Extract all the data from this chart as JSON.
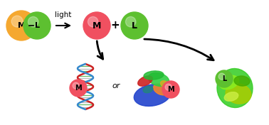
{
  "bg_color": "#ffffff",
  "light_text": "light",
  "or_text": "or",
  "plus_text": "+",
  "m_label": "M",
  "l_label": "L",
  "orange_color": "#F5A830",
  "red_color": "#F05060",
  "green_color": "#5DC030",
  "fig_width": 3.78,
  "fig_height": 1.76,
  "dpi": 100,
  "xlim": [
    0,
    378
  ],
  "ylim": [
    0,
    176
  ],
  "dna_strand1_color": "#cc2222",
  "dna_strand2_color": "#3388cc",
  "dna_bp_color": "#44aa44",
  "protein1_colors": [
    "#2244cc",
    "#33bb33",
    "#cc2222",
    "#ff7722",
    "#33aa88"
  ],
  "protein2_colors": [
    "#33cc22",
    "#aacc00",
    "#ccee33",
    "#88ee22",
    "#44aa00"
  ]
}
